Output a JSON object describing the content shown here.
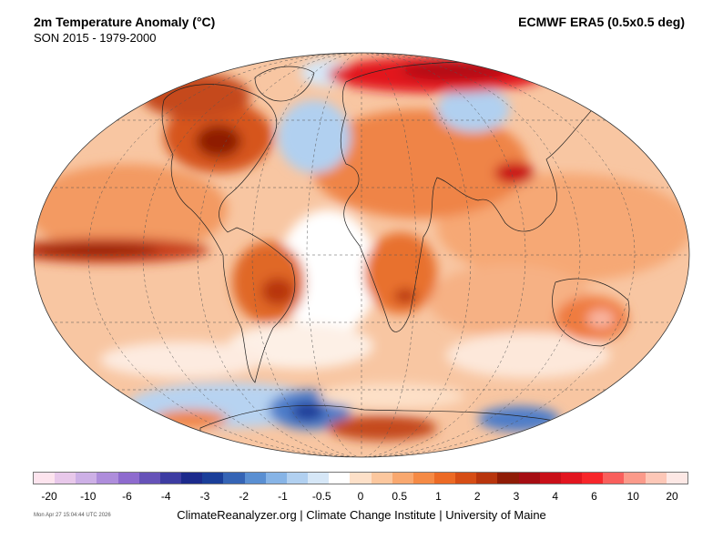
{
  "header": {
    "title": "2m Temperature Anomaly (°C)",
    "subtitle": "SON 2015 - 1979-2000",
    "dataset": "ECMWF ERA5 (0.5x0.5 deg)"
  },
  "colorbar": {
    "colors": [
      "#fde4ee",
      "#e8c8ea",
      "#cdb0e6",
      "#ae8ddb",
      "#8e6bce",
      "#6652b8",
      "#3d3ca2",
      "#1c2a8c",
      "#1a3e99",
      "#3564b5",
      "#5a8fd2",
      "#87b4e6",
      "#b1d0f0",
      "#d6e7f7",
      "#ffffff",
      "#fde0c8",
      "#fcc79e",
      "#f9a86f",
      "#f58a45",
      "#ec6a25",
      "#d64d15",
      "#b8350d",
      "#8f1c06",
      "#a50d12",
      "#c90f18",
      "#e2151f",
      "#f7262a",
      "#f95f5c",
      "#fb9a8a",
      "#fdc7b7",
      "#fde8e5"
    ],
    "tick_labels": [
      "-20",
      "-10",
      "-6",
      "-4",
      "-3",
      "-2",
      "-1",
      "-0.5",
      "0",
      "0.5",
      "1",
      "2",
      "3",
      "4",
      "6",
      "10",
      "20"
    ]
  },
  "footer": {
    "timestamp": "Mon Apr 27 15:04:44 UTC 2026",
    "credits": "ClimateReanalyzer.org | Climate Change Institute | University of Maine"
  },
  "map": {
    "projection": "Winkel-tripel style global ellipse",
    "ocean_background": "#f7c3a0",
    "warm_color": "#ef7b3f",
    "hot_color": "#d7301f",
    "extreme_color": "#b10d15",
    "cool_color": "#8fb8e8",
    "cold_color": "#3b6fc1"
  }
}
